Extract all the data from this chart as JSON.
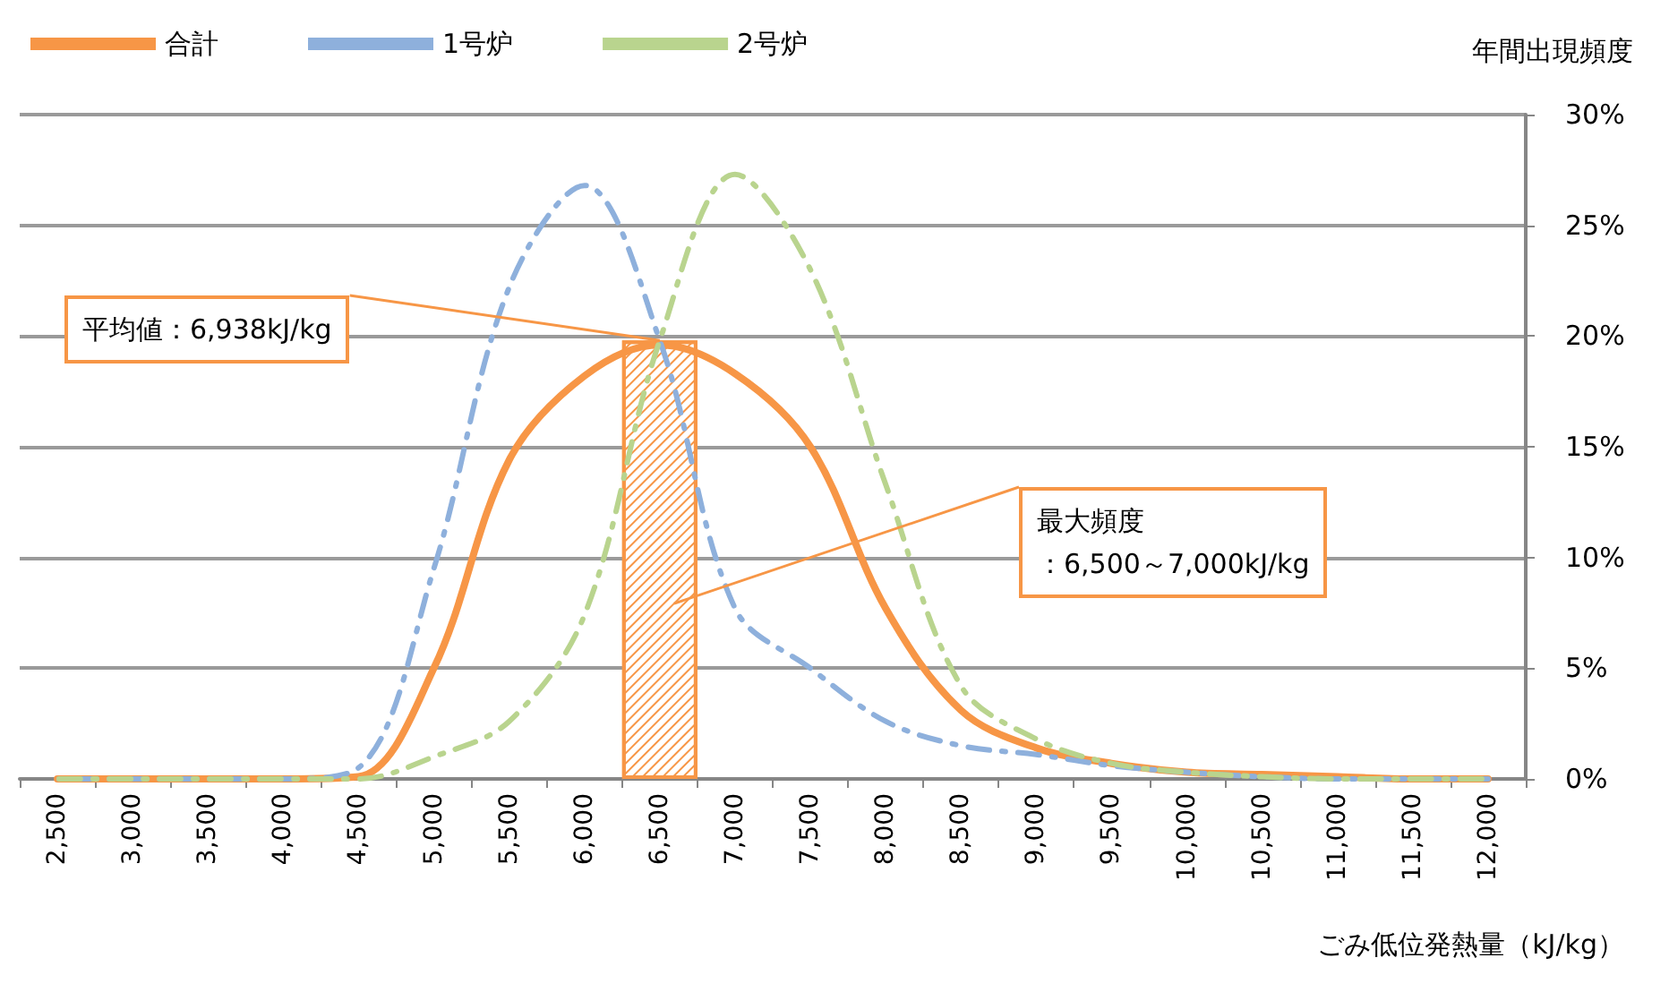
{
  "chart_data": {
    "type": "line",
    "xlabel": "ごみ低位発熱量（kJ/kg）",
    "ylabel": "年間出現頻度",
    "categories": [
      "2,500",
      "3,000",
      "3,500",
      "4,000",
      "4,500",
      "5,000",
      "5,500",
      "6,000",
      "6,500",
      "7,000",
      "7,500",
      "8,000",
      "8,500",
      "9,000",
      "9,500",
      "10,000",
      "10,500",
      "11,000",
      "11,500",
      "12,000"
    ],
    "series": [
      {
        "type": "bar",
        "color": "#f79646",
        "values": [
          null,
          null,
          null,
          null,
          null,
          null,
          null,
          null,
          19.8,
          null,
          null,
          null,
          null,
          null,
          null,
          null,
          null,
          null,
          null,
          null
        ]
      },
      {
        "name": "合計",
        "color": "#f79646",
        "line_style": "solid",
        "values": [
          0,
          0,
          0,
          0,
          0.1,
          5.0,
          14.4,
          18.2,
          19.6,
          18.3,
          15.0,
          7.7,
          3.1,
          1.4,
          0.7,
          0.3,
          0.2,
          0.1,
          0,
          0
        ]
      },
      {
        "name": "1号炉",
        "color": "#8eb0dc",
        "line_style": "dashed",
        "values": [
          0,
          0,
          0,
          0,
          0.5,
          9.5,
          22.2,
          26.8,
          19.8,
          7.7,
          5.0,
          2.6,
          1.5,
          1.1,
          0.6,
          0.3,
          0.1,
          0,
          0,
          0
        ]
      },
      {
        "name": "2号炉",
        "color": "#b9d48e",
        "line_style": "dashed",
        "values": [
          0,
          0,
          0,
          0,
          0,
          1.0,
          2.6,
          7.4,
          19.8,
          27.3,
          23.0,
          13.3,
          4.2,
          1.8,
          0.7,
          0.3,
          0.1,
          0,
          0,
          0
        ]
      }
    ],
    "ylim": [
      0,
      30
    ],
    "yticks": [
      {
        "value": 0,
        "label": "0%"
      },
      {
        "value": 5,
        "label": "5%"
      },
      {
        "value": 10,
        "label": "10%"
      },
      {
        "value": 15,
        "label": "15%"
      },
      {
        "value": 20,
        "label": "20%"
      },
      {
        "value": 25,
        "label": "25%"
      },
      {
        "value": 30,
        "label": "30%"
      }
    ],
    "grid": "y",
    "legend": "top left",
    "marker": "none",
    "annotations": [
      {
        "text": "平均値：6,938kJ/kg",
        "x": "6,500",
        "y": 19.8
      },
      "最大頻度",
      "：6,500～7,000kJ/kg"
    ]
  }
}
